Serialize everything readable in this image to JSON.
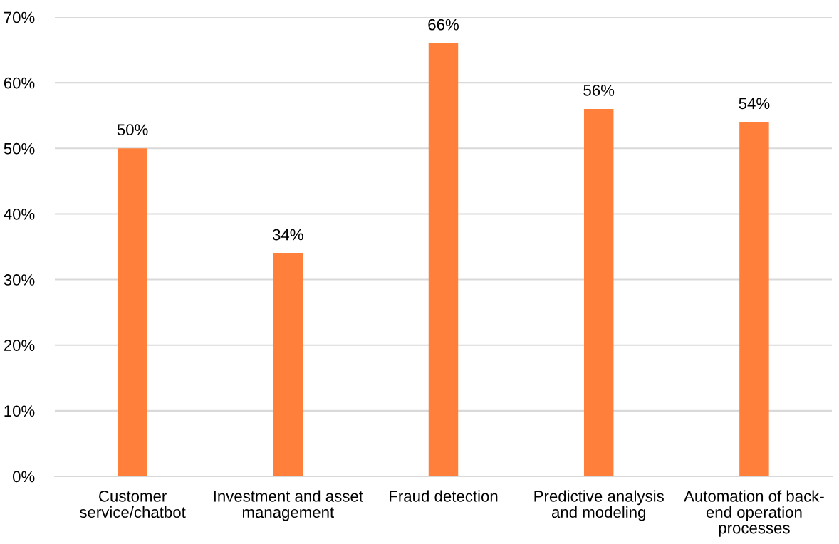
{
  "chart_data": {
    "type": "bar",
    "categories": [
      "Customer\nservice/chatbot",
      "Investment and asset\nmanagement",
      "Fraud detection",
      "Predictive analysis\nand modeling",
      "Automation of back-\nend operation\nprocesses"
    ],
    "values": [
      50,
      34,
      66,
      56,
      54
    ],
    "value_labels": [
      "50%",
      "34%",
      "66%",
      "56%",
      "54%"
    ],
    "color": "#ff7f3b",
    "ylim": [
      0,
      70
    ],
    "yticks": [
      {
        "value": 0,
        "label": "0%"
      },
      {
        "value": 10,
        "label": "10%"
      },
      {
        "value": 20,
        "label": "20%"
      },
      {
        "value": 30,
        "label": "30%"
      },
      {
        "value": 40,
        "label": "40%"
      },
      {
        "value": 50,
        "label": "50%"
      },
      {
        "value": 60,
        "label": "60%"
      },
      {
        "value": 70,
        "label": "70%"
      }
    ],
    "grid": "y",
    "legend": false
  }
}
